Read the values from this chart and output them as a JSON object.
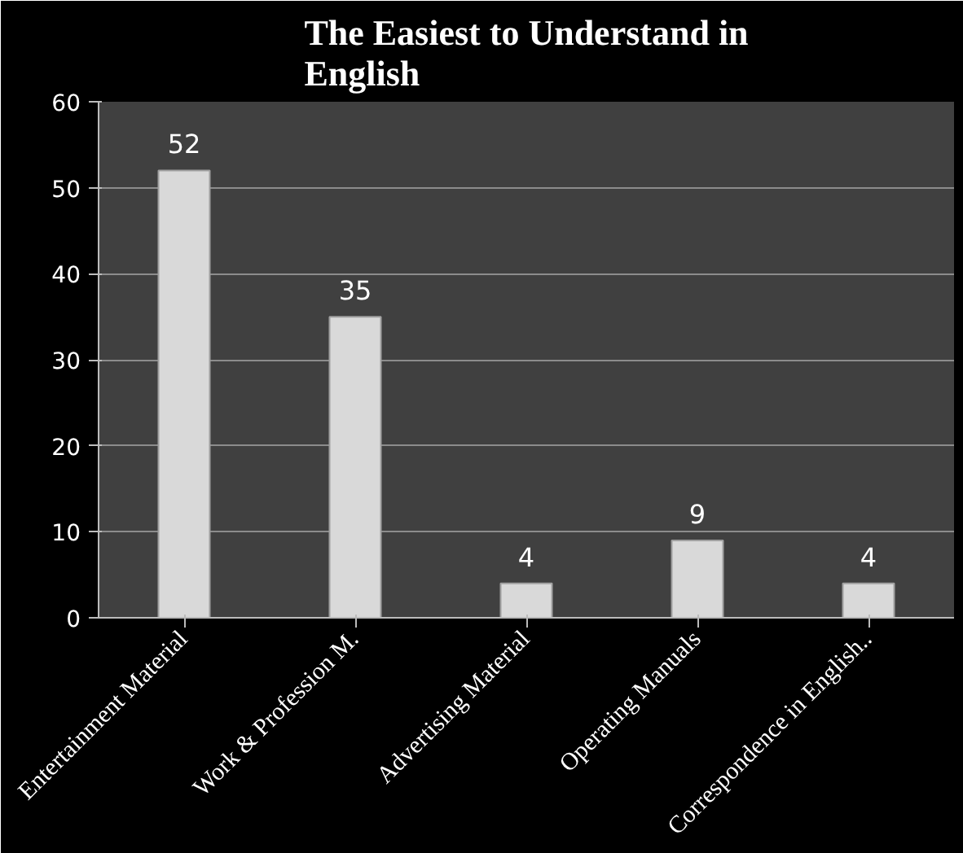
{
  "chart_data": {
    "type": "bar",
    "title": "The Easiest to Understand in English",
    "categories": [
      "Entertainment Material",
      "Work & Profession M.",
      "Advertising Material",
      "Operating Manuals",
      "Correspondence in English.."
    ],
    "values": [
      52,
      35,
      4,
      9,
      4
    ],
    "color": "#d9d9d9",
    "ylim": [
      0,
      60
    ],
    "yticks": [
      0,
      10,
      20,
      30,
      40,
      50,
      60
    ],
    "grid": "y",
    "data_labels": true
  }
}
